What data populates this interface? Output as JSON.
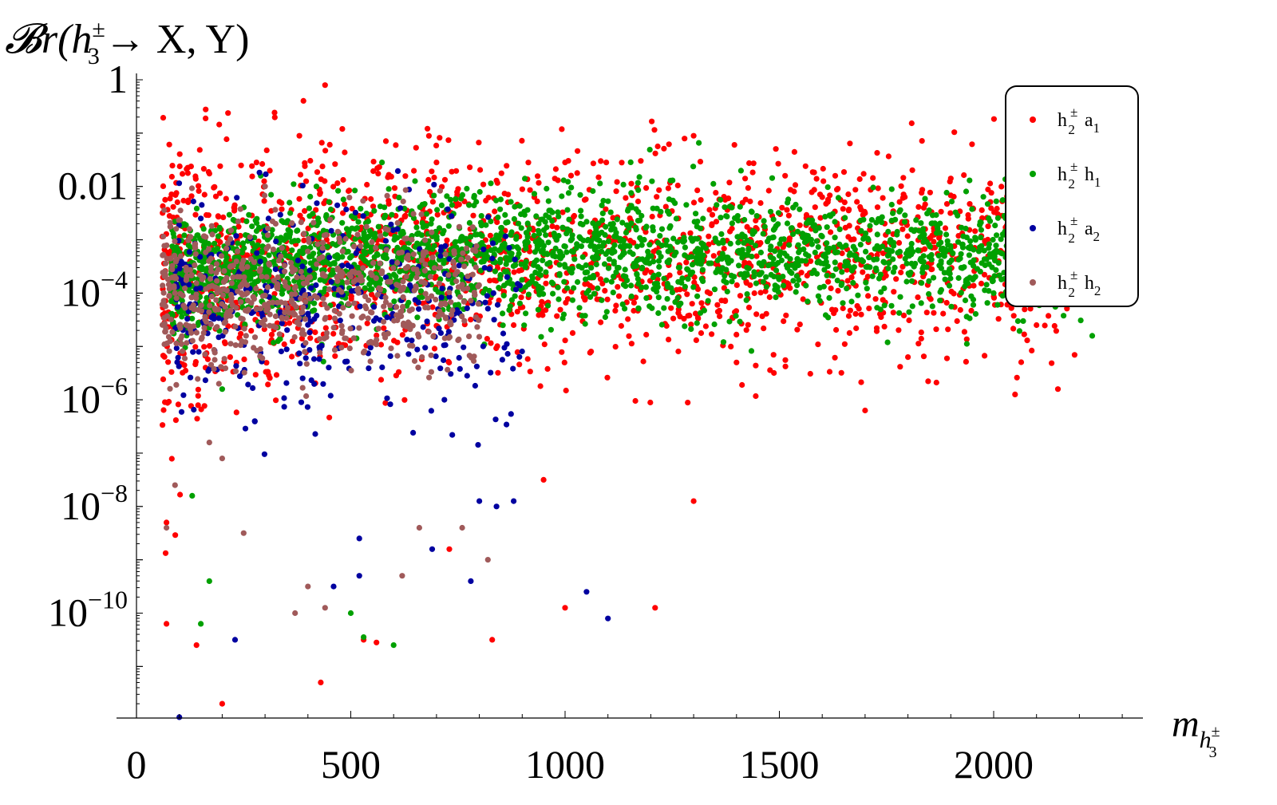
{
  "chart_data": {
    "type": "scatter",
    "title": "",
    "ylabel": "𝓑r(h₃± → X, Y)",
    "ylabel_parts": {
      "prefix": "𝓑r(",
      "var": "h",
      "sup": "±",
      "sub": "3",
      "rest": "→ X, Y)"
    },
    "xlabel": "m h₃±",
    "xlabel_parts": {
      "var": "m",
      "subvar": "h",
      "sup": "±",
      "sub": "3"
    },
    "xlim": [
      0,
      2350
    ],
    "ylim_log10": [
      -12,
      0.1
    ],
    "y_scale": "log",
    "grid": false,
    "legend_position": "top-right",
    "x_ticks": [
      "0",
      "500",
      "1000",
      "1500",
      "2000"
    ],
    "y_ticks": [
      {
        "log10": 0,
        "base": "1",
        "exp": ""
      },
      {
        "log10": -2,
        "base": "0.01",
        "exp": ""
      },
      {
        "log10": -4,
        "base": "10",
        "exp": "−4"
      },
      {
        "log10": -6,
        "base": "10",
        "exp": "−6"
      },
      {
        "log10": -8,
        "base": "10",
        "exp": "−8"
      },
      {
        "log10": -10,
        "base": "10",
        "exp": "−10"
      }
    ],
    "series": [
      {
        "name": "h₂± a₁",
        "label": {
          "var": "h",
          "sup": "±",
          "sub": "2",
          "second": "a",
          "second_sub": "1"
        },
        "color": "#ff0000",
        "sample_points": [
          [
            440,
            -0.1
          ],
          [
            380,
            -1.05
          ],
          [
            1300,
            -1.05
          ],
          [
            120,
            -1.75
          ],
          [
            280,
            -1.55
          ],
          [
            700,
            -1.55
          ],
          [
            1000,
            -1.55
          ],
          [
            1600,
            -2.2
          ],
          [
            1900,
            -1.85
          ],
          [
            1700,
            -2.5
          ],
          [
            2200,
            -3.5
          ],
          [
            2100,
            -4.6
          ],
          [
            2150,
            -5.8
          ],
          [
            1800,
            -5.2
          ],
          [
            1300,
            -7.9
          ],
          [
            950,
            -7.5
          ],
          [
            730,
            -8.8
          ],
          [
            1210,
            -9.9
          ],
          [
            1000,
            -9.9
          ],
          [
            830,
            -10.5
          ],
          [
            530,
            -10.5
          ],
          [
            560,
            -10.55
          ],
          [
            430,
            -11.3
          ],
          [
            200,
            -11.7
          ],
          [
            70,
            -10.2
          ],
          [
            140,
            -10.6
          ],
          [
            70,
            -8.3
          ],
          [
            1700,
            -6.2
          ],
          [
            2050,
            -5.9
          ],
          [
            1400,
            -5.3
          ]
        ],
        "cluster": {
          "xrange": [
            60,
            2200
          ],
          "center_log10": -3.3,
          "spread": 1.1,
          "count": 1700
        }
      },
      {
        "name": "h₂± h₁",
        "label": {
          "var": "h",
          "sup": "±",
          "sub": "2",
          "second": "h",
          "second_sub": "1"
        },
        "color": "#00a000",
        "sample_points": [
          [
            600,
            -10.6
          ],
          [
            530,
            -10.45
          ],
          [
            500,
            -10.0
          ],
          [
            150,
            -10.2
          ],
          [
            170,
            -9.4
          ],
          [
            130,
            -7.8
          ],
          [
            2230,
            -4.8
          ],
          [
            2000,
            -4.0
          ],
          [
            1800,
            -3.2
          ],
          [
            1500,
            -3.3
          ],
          [
            290,
            -1.8
          ],
          [
            420,
            -2.0
          ],
          [
            650,
            -1.9
          ],
          [
            330,
            -4.9
          ],
          [
            200,
            -5.8
          ]
        ],
        "cluster": {
          "xrange": [
            80,
            2230
          ],
          "center_log10": -3.6,
          "spread": 0.55,
          "count": 2400
        }
      },
      {
        "name": "h₂± a₂",
        "label": {
          "var": "h",
          "sup": "±",
          "sub": "2",
          "second": "a",
          "second_sub": "2"
        },
        "color": "#0000a0",
        "sample_points": [
          [
            100,
            -11.95
          ],
          [
            1100,
            -10.1
          ],
          [
            1050,
            -9.6
          ],
          [
            780,
            -9.4
          ],
          [
            230,
            -10.5
          ],
          [
            460,
            -9.5
          ],
          [
            520,
            -9.3
          ],
          [
            800,
            -7.9
          ],
          [
            840,
            -8.0
          ],
          [
            880,
            -7.9
          ],
          [
            690,
            -8.8
          ],
          [
            520,
            -8.6
          ],
          [
            150,
            -2.6
          ],
          [
            170,
            -3.3
          ],
          [
            240,
            -3.6
          ]
        ],
        "cluster": {
          "xrange": [
            90,
            900
          ],
          "center_log10": -4.3,
          "spread": 1.0,
          "count": 350
        }
      },
      {
        "name": "h₂± h₂",
        "label": {
          "var": "h",
          "sup": "±",
          "sub": "2",
          "second": "h",
          "second_sub": "2"
        },
        "color": "#a05a5a",
        "sample_points": [
          [
            370,
            -10.0
          ],
          [
            400,
            -9.5
          ],
          [
            440,
            -9.9
          ],
          [
            620,
            -9.3
          ],
          [
            820,
            -9.0
          ],
          [
            660,
            -8.4
          ],
          [
            760,
            -8.4
          ],
          [
            70,
            -8.4
          ],
          [
            90,
            -7.6
          ],
          [
            300,
            -2.0
          ],
          [
            200,
            -7.1
          ],
          [
            170,
            -6.8
          ],
          [
            250,
            -8.5
          ]
        ],
        "cluster": {
          "xrange": [
            60,
            800
          ],
          "center_log10": -4.0,
          "spread": 0.7,
          "count": 650
        }
      }
    ]
  }
}
